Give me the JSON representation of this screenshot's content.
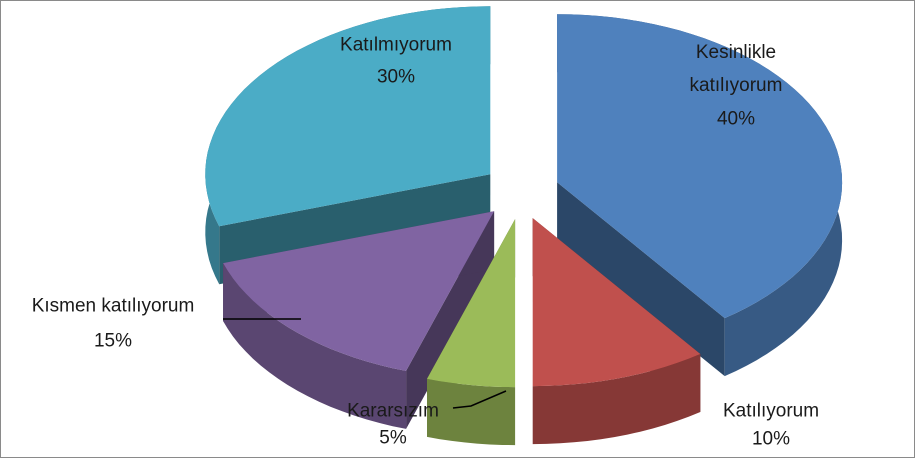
{
  "chart_data": {
    "type": "pie",
    "categories": [
      "Kesinlikle katılıyorum",
      "Katılıyorum",
      "Kararsızım",
      "Kısmen katılıyorum",
      "Katılmıyorum"
    ],
    "values": [
      40,
      10,
      5,
      15,
      30
    ],
    "value_labels": [
      "40%",
      "10%",
      "5%",
      "15%",
      "30%"
    ],
    "colors": [
      "#4f81bd",
      "#c0504d",
      "#9bbb59",
      "#8064a2",
      "#4bacc6"
    ]
  }
}
